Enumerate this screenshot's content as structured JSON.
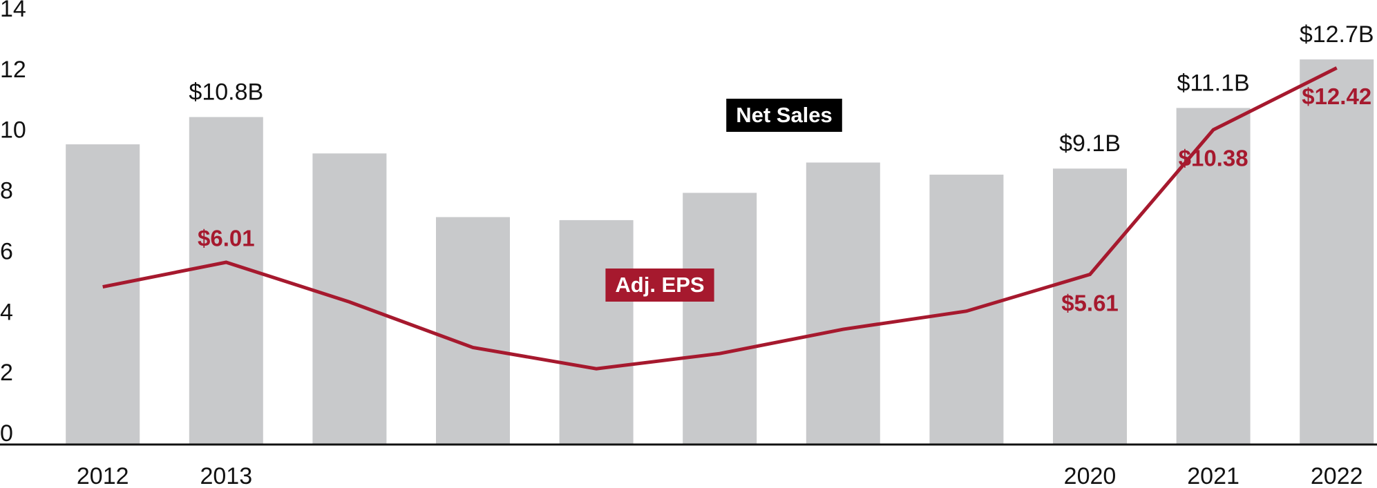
{
  "chart_data": {
    "type": "bar",
    "categories": [
      "2012",
      "2013",
      null,
      null,
      null,
      null,
      null,
      null,
      "2020",
      "2021",
      "2022"
    ],
    "series": [
      {
        "name": "Net Sales",
        "type": "bar",
        "color": "#c8c9cb",
        "values": [
          9.9,
          10.8,
          9.6,
          7.5,
          7.4,
          8.3,
          9.3,
          8.9,
          9.1,
          11.1,
          12.7
        ],
        "value_labels": [
          null,
          "$10.8B",
          null,
          null,
          null,
          null,
          null,
          null,
          "$9.1B",
          "$11.1B",
          "$12.7B"
        ]
      },
      {
        "name": "Adj. EPS",
        "type": "line",
        "color": "#a6192e",
        "values": [
          5.2,
          6.01,
          4.7,
          3.2,
          2.5,
          3.0,
          3.8,
          4.4,
          5.61,
          10.38,
          12.42
        ],
        "value_labels": [
          null,
          "$6.01",
          null,
          null,
          null,
          null,
          null,
          null,
          "$5.61",
          "$10.38",
          "$12.42"
        ]
      }
    ],
    "ylim": [
      0,
      14
    ],
    "yticks": [
      0,
      2,
      4,
      6,
      8,
      10,
      12,
      14
    ]
  }
}
